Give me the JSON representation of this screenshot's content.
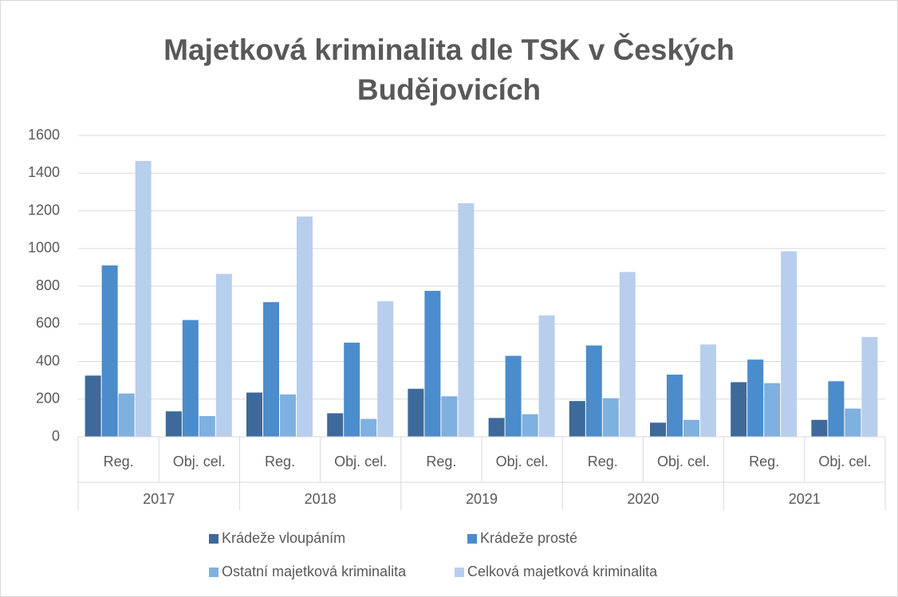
{
  "chart_data": {
    "type": "bar",
    "title": "Majetková kriminalita dle TSK v Českých Budějovicích",
    "categories": [
      "Reg.",
      "Obj. cel.",
      "Reg.",
      "Obj. cel.",
      "Reg.",
      "Obj. cel.",
      "Reg.",
      "Obj. cel.",
      "Reg.",
      "Obj. cel."
    ],
    "category_groups": [
      "2017",
      "2018",
      "2019",
      "2020",
      "2021"
    ],
    "series": [
      {
        "name": "Krádeže vloupáním",
        "color": "#3d6a9a",
        "values": [
          325,
          135,
          235,
          125,
          255,
          100,
          190,
          75,
          290,
          90
        ]
      },
      {
        "name": "Krádeže prosté",
        "color": "#4a8ccc",
        "values": [
          910,
          620,
          715,
          500,
          775,
          430,
          485,
          330,
          410,
          295
        ]
      },
      {
        "name": "Ostatní majetková kriminalita",
        "color": "#7eb0e0",
        "values": [
          230,
          110,
          225,
          95,
          215,
          120,
          205,
          90,
          285,
          150
        ]
      },
      {
        "name": "Celková majetková kriminalita",
        "color": "#b7cfec",
        "values": [
          1465,
          865,
          1170,
          720,
          1240,
          645,
          875,
          490,
          985,
          530
        ]
      }
    ],
    "ylim": [
      0,
      1600
    ],
    "yticks": [
      0,
      200,
      400,
      600,
      800,
      1000,
      1200,
      1400,
      1600
    ],
    "grid": true,
    "legend": "bottom"
  }
}
